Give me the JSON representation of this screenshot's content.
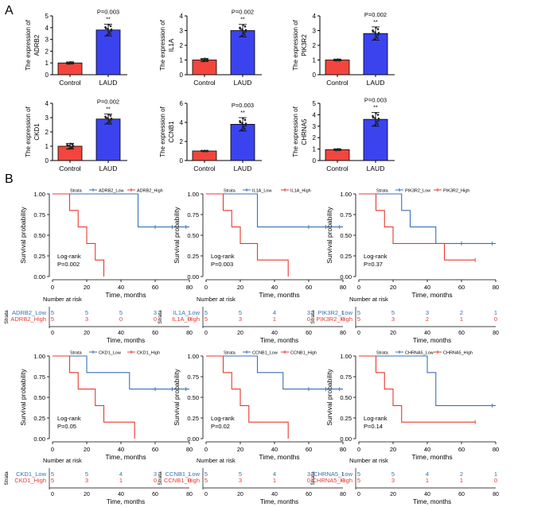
{
  "panel_labels": {
    "a": "A",
    "b": "B"
  },
  "colors": {
    "control": "#f2453d",
    "laud": "#3b43ef",
    "low": "#3a6fb5",
    "high": "#e8392f",
    "axis": "#000000"
  },
  "chart_data": [
    {
      "type": "bar",
      "id": "adrb2",
      "ylabel": "The expression of\nADRB2",
      "categories": [
        "Control",
        "LAUD"
      ],
      "values": [
        1.0,
        3.8
      ],
      "errors": [
        0.08,
        0.5
      ],
      "ylim": [
        0,
        5
      ],
      "yticks": [
        0,
        1,
        2,
        3,
        4,
        5
      ],
      "pvalue": "P=0.003",
      "sig": "**"
    },
    {
      "type": "bar",
      "id": "il1a",
      "ylabel": "The expression of\nIL1A",
      "categories": [
        "Control",
        "LAUD"
      ],
      "values": [
        1.0,
        3.0
      ],
      "errors": [
        0.1,
        0.42
      ],
      "ylim": [
        0,
        4
      ],
      "yticks": [
        0,
        1,
        2,
        3,
        4
      ],
      "pvalue": "P=0.002",
      "sig": "**"
    },
    {
      "type": "bar",
      "id": "pik3r2",
      "ylabel": "The expression of\nPIK3R2",
      "categories": [
        "Control",
        "LAUD"
      ],
      "values": [
        1.0,
        2.8
      ],
      "errors": [
        0.05,
        0.45
      ],
      "ylim": [
        0,
        4
      ],
      "yticks": [
        0,
        1,
        2,
        3,
        4
      ],
      "pvalue": "P=0.002",
      "sig": "**"
    },
    {
      "type": "bar",
      "id": "ckd1",
      "ylabel": "The expression of\nCKD1",
      "categories": [
        "Control",
        "LAUD"
      ],
      "values": [
        1.0,
        2.9
      ],
      "errors": [
        0.2,
        0.35
      ],
      "ylim": [
        0,
        4
      ],
      "yticks": [
        0,
        1,
        2,
        3,
        4
      ],
      "pvalue": "P=0.002",
      "sig": "**"
    },
    {
      "type": "bar",
      "id": "ccnb1",
      "ylabel": "The expression of\nCCNB1",
      "categories": [
        "Control",
        "LAUD"
      ],
      "values": [
        1.0,
        3.8
      ],
      "errors": [
        0.03,
        0.7
      ],
      "ylim": [
        0,
        6
      ],
      "yticks": [
        0,
        2,
        4,
        6
      ],
      "pvalue": "P=0.003",
      "sig": "**"
    },
    {
      "type": "bar",
      "id": "chrna5",
      "ylabel": "The expression of\nCHRNA5",
      "categories": [
        "Control",
        "LAUD"
      ],
      "values": [
        0.95,
        3.6
      ],
      "errors": [
        0.06,
        0.6
      ],
      "ylim": [
        0,
        5
      ],
      "yticks": [
        0,
        1,
        2,
        3,
        4,
        5
      ],
      "pvalue": "P=0.003",
      "sig": "**"
    },
    {
      "type": "line",
      "id": "km-adrb2",
      "strata_label": "Strata",
      "gene": "ADRB2",
      "xlabel": "Time, months",
      "ylabel": "Survival probability",
      "xlim": [
        0,
        80
      ],
      "xticks": [
        0,
        20,
        40,
        60,
        80
      ],
      "ylim": [
        0,
        1
      ],
      "yticks": [
        0,
        0.25,
        0.5,
        0.75,
        1
      ],
      "logrank": "Log-rank",
      "pvalue": "P=0.002",
      "series": [
        {
          "name": "ADRB2_Low",
          "x": [
            0,
            45,
            50,
            80
          ],
          "y": [
            1,
            1,
            0.6,
            0.6
          ],
          "censor": [
            60,
            70,
            78
          ]
        },
        {
          "name": "ADRB2_High",
          "x": [
            0,
            10,
            15,
            20,
            25,
            30
          ],
          "y": [
            1,
            0.8,
            0.6,
            0.4,
            0.2,
            0
          ],
          "censor": []
        }
      ],
      "risk_title": "Number at risk",
      "risk_axis": "Strata",
      "risk": [
        [
          "5",
          "5",
          "5",
          "3",
          "1"
        ],
        [
          "5",
          "3",
          "0",
          "0",
          "0"
        ]
      ]
    },
    {
      "type": "line",
      "id": "km-il1a",
      "strata_label": "Strata",
      "gene": "IL1A",
      "xlabel": "Time, months",
      "ylabel": "Survival probability",
      "xlim": [
        0,
        80
      ],
      "xticks": [
        0,
        20,
        40,
        60,
        80
      ],
      "ylim": [
        0,
        1
      ],
      "yticks": [
        0,
        0.25,
        0.5,
        0.75,
        1
      ],
      "logrank": "Log-rank",
      "pvalue": "P=0.003",
      "series": [
        {
          "name": "IL1A_Low",
          "x": [
            0,
            25,
            30,
            80
          ],
          "y": [
            1,
            1,
            0.6,
            0.6
          ],
          "censor": [
            60,
            70,
            78
          ]
        },
        {
          "name": "IL1A_High",
          "x": [
            0,
            10,
            15,
            20,
            30,
            48
          ],
          "y": [
            1,
            0.8,
            0.6,
            0.4,
            0.2,
            0
          ],
          "censor": []
        }
      ],
      "risk_title": "Number at risk",
      "risk_axis": "Strata",
      "risk": [
        [
          "5",
          "5",
          "4",
          "3",
          "1"
        ],
        [
          "5",
          "3",
          "1",
          "0",
          "0"
        ]
      ]
    },
    {
      "type": "line",
      "id": "km-pik3r2",
      "strata_label": "Strata",
      "gene": "PIK3R2",
      "xlabel": "Time, months",
      "ylabel": "Survival probability",
      "xlim": [
        0,
        80
      ],
      "xticks": [
        0,
        20,
        40,
        60,
        80
      ],
      "ylim": [
        0,
        1
      ],
      "yticks": [
        0,
        0.25,
        0.5,
        0.75,
        1
      ],
      "logrank": "Log-rank",
      "pvalue": "P=0.37",
      "series": [
        {
          "name": "PIK3R2_Low",
          "x": [
            0,
            20,
            25,
            30,
            45,
            80
          ],
          "y": [
            1,
            1,
            0.8,
            0.6,
            0.4,
            0.4
          ],
          "censor": [
            60,
            78
          ]
        },
        {
          "name": "PIK3R2_High",
          "x": [
            0,
            10,
            15,
            20,
            50,
            68
          ],
          "y": [
            1,
            0.8,
            0.6,
            0.4,
            0.2,
            0.2
          ],
          "censor": [
            68
          ]
        }
      ],
      "risk_title": "Number at risk",
      "risk_axis": "Strata",
      "risk": [
        [
          "5",
          "5",
          "3",
          "2",
          "1"
        ],
        [
          "5",
          "3",
          "2",
          "1",
          "0"
        ]
      ]
    },
    {
      "type": "line",
      "id": "km-ckd1",
      "strata_label": "Strata",
      "gene": "CKD1",
      "xlabel": "Time, months",
      "ylabel": "Survival probability",
      "xlim": [
        0,
        80
      ],
      "xticks": [
        0,
        20,
        40,
        60,
        80
      ],
      "ylim": [
        0,
        1
      ],
      "yticks": [
        0,
        0.25,
        0.5,
        0.75,
        1
      ],
      "logrank": "Log-rank",
      "pvalue": "P=0.05",
      "series": [
        {
          "name": "CKD1_Low",
          "x": [
            0,
            15,
            20,
            45,
            80
          ],
          "y": [
            1,
            1,
            0.8,
            0.6,
            0.6
          ],
          "censor": [
            60,
            70,
            78
          ]
        },
        {
          "name": "CKD1_High",
          "x": [
            0,
            10,
            15,
            25,
            30,
            48
          ],
          "y": [
            1,
            0.8,
            0.6,
            0.4,
            0.2,
            0
          ],
          "censor": []
        }
      ],
      "risk_title": "Number at risk",
      "risk_axis": "Strata",
      "risk": [
        [
          "5",
          "5",
          "4",
          "3",
          "1"
        ],
        [
          "5",
          "3",
          "1",
          "0",
          "0"
        ]
      ]
    },
    {
      "type": "line",
      "id": "km-ccnb1",
      "strata_label": "Strata",
      "gene": "CCNB1",
      "xlabel": "Time, months",
      "ylabel": "Survival probability",
      "xlim": [
        0,
        80
      ],
      "xticks": [
        0,
        20,
        40,
        60,
        80
      ],
      "ylim": [
        0,
        1
      ],
      "yticks": [
        0,
        0.25,
        0.5,
        0.75,
        1
      ],
      "logrank": "Log-rank",
      "pvalue": "P=0.02",
      "series": [
        {
          "name": "CCNB1_Low",
          "x": [
            0,
            25,
            30,
            45,
            80
          ],
          "y": [
            1,
            1,
            0.8,
            0.6,
            0.6
          ],
          "censor": [
            60,
            70,
            78
          ]
        },
        {
          "name": "CCNB1_High",
          "x": [
            0,
            10,
            15,
            20,
            25,
            48
          ],
          "y": [
            1,
            0.8,
            0.6,
            0.4,
            0.2,
            0
          ],
          "censor": []
        }
      ],
      "risk_title": "Number at risk",
      "risk_axis": "Strata",
      "risk": [
        [
          "5",
          "5",
          "4",
          "3",
          "1"
        ],
        [
          "5",
          "3",
          "1",
          "0",
          "0"
        ]
      ]
    },
    {
      "type": "line",
      "id": "km-chrna5",
      "strata_label": "Strata",
      "gene": "CHRNA5",
      "xlabel": "Time, months",
      "ylabel": "Survival probability",
      "xlim": [
        0,
        80
      ],
      "xticks": [
        0,
        20,
        40,
        60,
        80
      ],
      "ylim": [
        0,
        1
      ],
      "yticks": [
        0,
        0.25,
        0.5,
        0.75,
        1
      ],
      "logrank": "Log-rank",
      "pvalue": "P=0.14",
      "series": [
        {
          "name": "CHRNA5_Low",
          "x": [
            0,
            30,
            40,
            45,
            80
          ],
          "y": [
            1,
            1,
            0.8,
            0.4,
            0.4
          ],
          "censor": [
            78
          ]
        },
        {
          "name": "CHRNA5_High",
          "x": [
            0,
            10,
            15,
            20,
            25,
            68
          ],
          "y": [
            1,
            0.8,
            0.6,
            0.4,
            0.2,
            0.2
          ],
          "censor": [
            68
          ]
        }
      ],
      "risk_title": "Number at risk",
      "risk_axis": "Strata",
      "risk": [
        [
          "5",
          "5",
          "4",
          "2",
          "1"
        ],
        [
          "5",
          "3",
          "1",
          "1",
          "0"
        ]
      ]
    }
  ]
}
